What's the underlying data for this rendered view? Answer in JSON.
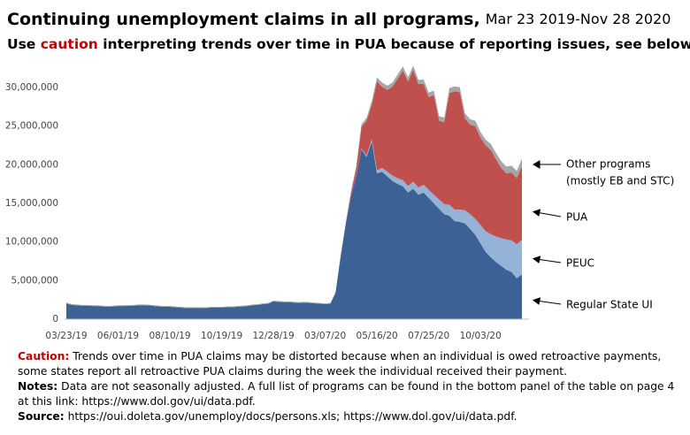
{
  "chart_data": {
    "type": "stacked_area",
    "title": "Continuing unemployment claims in all programs,",
    "title_dates": "Mar 23 2019-Nov 28 2020",
    "subtitle": [
      "Use ",
      "caution",
      " interpreting trends over time in PUA because of reporting issues, see below"
    ],
    "annotation": "(mostly EB and STC)",
    "notes": [
      {
        "label": "Caution:",
        "text": "Trends over time in PUA claims may be distorted because when an individual is owed retroactive payments, some states report all retroactive PUA claims during the week the individual received their payment."
      },
      {
        "label": "Notes:",
        "text": "Data are not seasonally adjusted. A full list of programs can be found in the bottom panel of the table on page 4 at this link: https://www.dol.gov/ui/data.pdf."
      },
      {
        "label": "Source:",
        "text": "https://oui.doleta.gov/unemploy/docs/persons.xls; https://www.dol.gov/ui/data.pdf."
      }
    ],
    "categories": [
      "03/23/19",
      null,
      null,
      null,
      null,
      null,
      null,
      null,
      null,
      null,
      "06/01/19",
      null,
      null,
      null,
      null,
      null,
      null,
      null,
      null,
      null,
      "08/10/19",
      null,
      null,
      null,
      null,
      null,
      null,
      null,
      null,
      null,
      "10/19/19",
      null,
      null,
      null,
      null,
      null,
      null,
      null,
      null,
      null,
      "12/28/19",
      null,
      null,
      null,
      null,
      null,
      null,
      null,
      null,
      null,
      "03/07/20",
      null,
      null,
      null,
      null,
      null,
      null,
      null,
      null,
      null,
      "05/16/20",
      null,
      null,
      null,
      null,
      null,
      null,
      null,
      null,
      null,
      "07/25/20",
      null,
      null,
      null,
      null,
      null,
      null,
      null,
      null,
      null,
      "10/03/20",
      null,
      null,
      null,
      null,
      null,
      null,
      null,
      null
    ],
    "series": [
      {
        "name": "Regular State UI",
        "color": "#3b6195",
        "values": [
          2050000,
          1850000,
          1800000,
          1750000,
          1750000,
          1700000,
          1700000,
          1650000,
          1600000,
          1650000,
          1700000,
          1700000,
          1720000,
          1750000,
          1800000,
          1800000,
          1780000,
          1700000,
          1650000,
          1600000,
          1600000,
          1550000,
          1500000,
          1450000,
          1450000,
          1450000,
          1450000,
          1450000,
          1500000,
          1500000,
          1500000,
          1550000,
          1550000,
          1600000,
          1650000,
          1700000,
          1800000,
          1850000,
          1950000,
          2000000,
          2300000,
          2250000,
          2200000,
          2200000,
          2150000,
          2100000,
          2150000,
          2100000,
          2050000,
          2000000,
          1950000,
          2000000,
          3400000,
          8200000,
          12400000,
          16000000,
          18500000,
          22000000,
          21000000,
          23000000,
          18900000,
          19100000,
          18500000,
          17900000,
          17500000,
          17200000,
          16400000,
          16900000,
          16100000,
          16400000,
          15700000,
          15000000,
          14300000,
          13600000,
          13400000,
          12700000,
          12600000,
          12400000,
          11700000,
          10900000,
          9800000,
          8700000,
          8000000,
          7400000,
          6900000,
          6400000,
          6100000,
          5300000,
          5800000
        ]
      },
      {
        "name": "PEUC",
        "color": "#95b3d7",
        "values": [
          0,
          0,
          0,
          0,
          0,
          0,
          0,
          0,
          0,
          0,
          0,
          0,
          0,
          0,
          0,
          0,
          0,
          0,
          0,
          0,
          0,
          0,
          0,
          0,
          0,
          0,
          0,
          0,
          0,
          0,
          0,
          0,
          0,
          0,
          0,
          0,
          0,
          0,
          0,
          0,
          0,
          0,
          0,
          0,
          0,
          0,
          0,
          0,
          0,
          0,
          0,
          0,
          0,
          0,
          0,
          0,
          50000,
          100000,
          200000,
          300000,
          400000,
          500000,
          600000,
          700000,
          750000,
          800000,
          850000,
          900000,
          950000,
          1000000,
          1050000,
          1100000,
          1200000,
          1300000,
          1400000,
          1500000,
          1600000,
          1700000,
          1900000,
          2100000,
          2400000,
          2700000,
          3000000,
          3300000,
          3600000,
          3900000,
          4100000,
          4400000,
          4500000
        ]
      },
      {
        "name": "PUA",
        "color": "#c0504d",
        "values": [
          0,
          0,
          0,
          0,
          0,
          0,
          0,
          0,
          0,
          0,
          0,
          0,
          0,
          0,
          0,
          0,
          0,
          0,
          0,
          0,
          0,
          0,
          0,
          0,
          0,
          0,
          0,
          0,
          0,
          0,
          0,
          0,
          0,
          0,
          0,
          0,
          0,
          0,
          0,
          0,
          0,
          0,
          0,
          0,
          0,
          0,
          0,
          0,
          0,
          0,
          0,
          0,
          0,
          0,
          100000,
          400000,
          1000000,
          2800000,
          4500000,
          4500000,
          11500000,
          10500000,
          10600000,
          11500000,
          12900000,
          14200000,
          13500000,
          14500000,
          13400000,
          13100000,
          12000000,
          12900000,
          10200000,
          10600000,
          14500000,
          15300000,
          15200000,
          11900000,
          11600000,
          12000000,
          11300000,
          11100000,
          10900000,
          10000000,
          9100000,
          8600000,
          8800000,
          8600000,
          9500000
        ]
      },
      {
        "name": "Other programs",
        "color": "#a6a6a6",
        "values": [
          100000,
          100000,
          100000,
          100000,
          100000,
          100000,
          100000,
          100000,
          100000,
          100000,
          100000,
          100000,
          100000,
          100000,
          100000,
          100000,
          100000,
          100000,
          100000,
          100000,
          100000,
          100000,
          100000,
          100000,
          100000,
          100000,
          100000,
          100000,
          100000,
          100000,
          100000,
          100000,
          100000,
          100000,
          100000,
          100000,
          100000,
          100000,
          100000,
          100000,
          100000,
          100000,
          100000,
          100000,
          100000,
          100000,
          100000,
          100000,
          100000,
          100000,
          100000,
          100000,
          100000,
          150000,
          200000,
          250000,
          300000,
          350000,
          400000,
          450000,
          500000,
          550000,
          550000,
          550000,
          550000,
          550000,
          550000,
          550000,
          550000,
          550000,
          600000,
          600000,
          600000,
          600000,
          650000,
          650000,
          650000,
          650000,
          700000,
          700000,
          750000,
          750000,
          800000,
          800000,
          850000,
          850000,
          900000,
          900000,
          1000000
        ]
      }
    ],
    "ylim": [
      0,
      33000000
    ],
    "yticks": [
      0,
      {
        "value": 5000000,
        "label": "5,000,000"
      },
      {
        "value": 10000000,
        "label": "10,000,000"
      },
      {
        "value": 15000000,
        "label": "15,000,000"
      },
      {
        "value": 20000000,
        "label": "20,000,000"
      },
      {
        "value": 25000000,
        "label": "25,000,000"
      },
      {
        "value": 30000000,
        "label": "30,000,000"
      }
    ],
    "grid": false
  }
}
